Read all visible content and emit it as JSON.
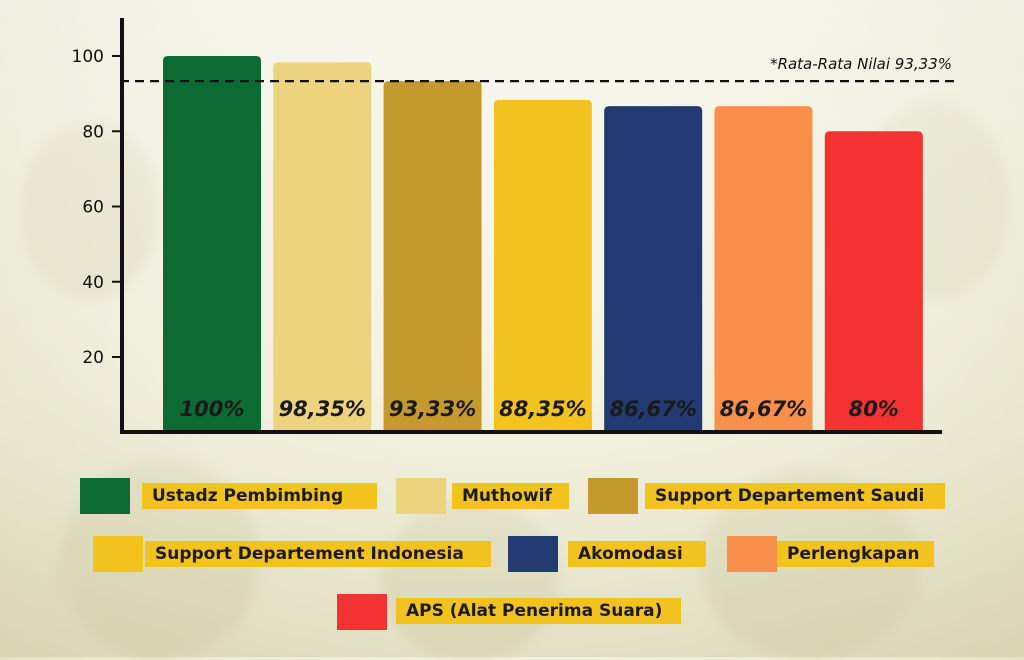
{
  "chart_data": {
    "type": "bar",
    "categories": [
      "Ustadz Pembimbing",
      "Muthowif",
      "Support Departement Saudi",
      "Support Departement Indonesia",
      "Akomodasi",
      "Perlengkapan",
      "APS (Alat Penerima Suara)"
    ],
    "values": [
      100,
      98.35,
      93.33,
      88.35,
      86.67,
      86.67,
      80
    ],
    "data_labels": [
      "100%",
      "98,35%",
      "93,33%",
      "88,35%",
      "86,67%",
      "86,67%",
      "80%"
    ],
    "colors": [
      "#0b6b33",
      "#ecd47e",
      "#c4992e",
      "#f2c21f",
      "#223a72",
      "#f88f4a",
      "#f43232"
    ],
    "y_ticks": [
      20,
      40,
      60,
      80,
      100
    ],
    "ylim": [
      0,
      100
    ],
    "grid": false,
    "legend_position": "bottom",
    "reference_line": {
      "value": 93.33,
      "label": "*Rata-Rata Nilai 93,33%",
      "style": "dashed"
    }
  }
}
